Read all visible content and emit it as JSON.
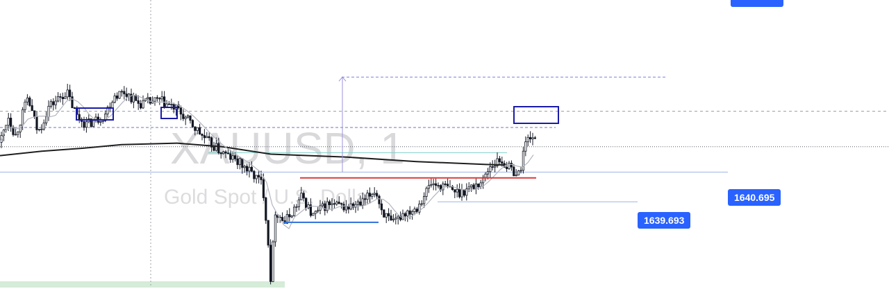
{
  "chart_data": {
    "type": "candlestick",
    "title": "XAUUSD, 1",
    "subtitle": "Gold Spot / U.S. Dollar",
    "price_labels": [
      "1640.695",
      "1639.693"
    ],
    "ylim": [
      1636.8,
      1646.5
    ],
    "grid": false,
    "colors": {
      "candle": "#131722",
      "ema_long": "#1e1e1e",
      "ma_short": "#b2b5be",
      "price_line": "#9db3e6",
      "resistance": "#d93a3a",
      "support": "#2f6fdb",
      "boxes": "#1a1aa8",
      "label_bg": "#2962ff",
      "measure": "#9b93d9"
    },
    "levels": {
      "top_dashed": 1643.9,
      "upper_dashed": 1642.75,
      "mid_dashed": 1642.2,
      "dotted_current": 1641.55,
      "teal_line": 1641.35,
      "price_line": 1640.695,
      "resistance": 1640.5,
      "lower_line": 1639.693,
      "support": 1639.0
    }
  }
}
